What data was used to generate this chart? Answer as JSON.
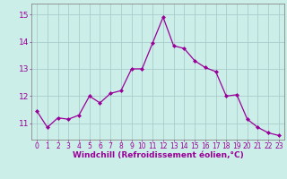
{
  "x": [
    0,
    1,
    2,
    3,
    4,
    5,
    6,
    7,
    8,
    9,
    10,
    11,
    12,
    13,
    14,
    15,
    16,
    17,
    18,
    19,
    20,
    21,
    22,
    23
  ],
  "y": [
    11.45,
    10.85,
    11.2,
    11.15,
    11.3,
    12.0,
    11.75,
    12.1,
    12.2,
    13.0,
    13.0,
    13.95,
    14.9,
    13.85,
    13.75,
    13.3,
    13.05,
    12.9,
    12.0,
    12.05,
    11.15,
    10.85,
    10.65,
    10.55
  ],
  "line_color": "#990099",
  "marker": "D",
  "markersize": 2.0,
  "linewidth": 0.9,
  "xlabel": "Windchill (Refroidissement éolien,°C)",
  "xlabel_fontsize": 6.5,
  "xlabel_color": "#990099",
  "yticks": [
    11,
    12,
    13,
    14,
    15
  ],
  "xlim": [
    -0.5,
    23.5
  ],
  "ylim": [
    10.4,
    15.4
  ],
  "ytick_fontsize": 6.5,
  "xtick_fontsize": 5.5,
  "background_color": "#cceee8",
  "grid_color": "#aacccc",
  "tick_color": "#990099",
  "spine_color": "#888888",
  "figsize": [
    3.2,
    2.0
  ],
  "dpi": 100
}
